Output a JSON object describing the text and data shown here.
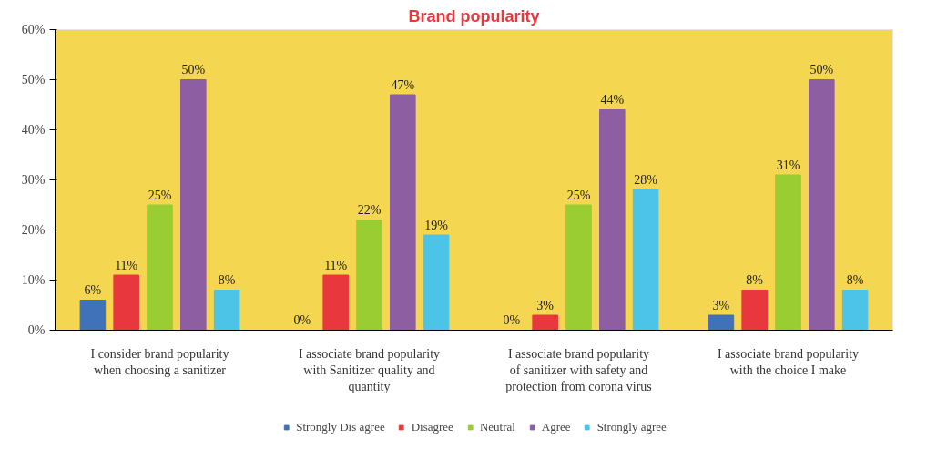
{
  "chart_data": {
    "type": "bar",
    "title": "Brand popularity",
    "categories": [
      "I consider brand popularity when choosing a sanitizer",
      "I associate brand popularity with Sanitizer quality and quantity",
      "I associate brand popularity of sanitizer with safety and protection from corona virus",
      "I associate brand popularity with the choice I make"
    ],
    "series": [
      {
        "name": "Strongly Dis agree",
        "color": "#3f72b8",
        "values": [
          6,
          0,
          0,
          3
        ],
        "value_labels": [
          "6%",
          "0%",
          "0%",
          "3%"
        ]
      },
      {
        "name": "Disagree",
        "color": "#e8383d",
        "values": [
          11,
          11,
          3,
          8
        ],
        "value_labels": [
          "11%",
          "11%",
          "3%",
          "8%"
        ]
      },
      {
        "name": "Neutral",
        "color": "#9acd32",
        "values": [
          25,
          22,
          25,
          31
        ],
        "value_labels": [
          "25%",
          "22%",
          "25%",
          "31%"
        ]
      },
      {
        "name": "Agree",
        "color": "#8e5ea2",
        "values": [
          50,
          47,
          44,
          50
        ],
        "value_labels": [
          "50%",
          "47%",
          "44%",
          "50%"
        ]
      },
      {
        "name": "Strongly agree",
        "color": "#4bc4e8",
        "values": [
          8,
          19,
          28,
          8
        ],
        "value_labels": [
          "8%",
          "19%",
          "28%",
          "8%"
        ]
      }
    ],
    "ylim": [
      0,
      60
    ],
    "yticks": [
      {
        "value": 0,
        "label": "0%"
      },
      {
        "value": 10,
        "label": "10%"
      },
      {
        "value": 20,
        "label": "20%"
      },
      {
        "value": 30,
        "label": "30%"
      },
      {
        "value": 40,
        "label": "40%"
      },
      {
        "value": 50,
        "label": "50%"
      },
      {
        "value": 60,
        "label": "60%"
      }
    ],
    "grid": false,
    "legend": "bottom"
  }
}
